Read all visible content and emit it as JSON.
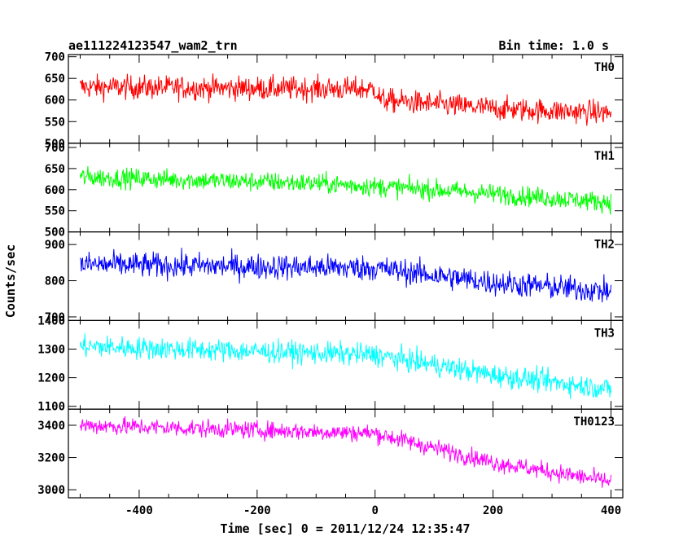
{
  "header": {
    "title": "ae111224123547_wam2_trn",
    "bin_time": "Bin time: 1.0 s"
  },
  "chart_data": {
    "type": "line",
    "title": "ae111224123547_wam2_trn",
    "xlabel": "Time [sec] 0 = 2011/12/24 12:35:47",
    "ylabel": "Counts/sec",
    "xlim": [
      -520,
      420
    ],
    "x_ticks": [
      -400,
      -200,
      0,
      200,
      400
    ],
    "x_range": [
      -500,
      400
    ],
    "panels": [
      {
        "name": "TH0",
        "color": "#ff0000",
        "ylim": [
          500,
          705
        ],
        "y_ticks": [
          500,
          550,
          600,
          650,
          700
        ],
        "trend": [
          [
            -500,
            630
          ],
          [
            0,
            625
          ],
          [
            10,
            600
          ],
          [
            200,
            580
          ],
          [
            400,
            570
          ]
        ],
        "spread": 35
      },
      {
        "name": "TH1",
        "color": "#00ff00",
        "ylim": [
          500,
          710
        ],
        "y_ticks": [
          500,
          550,
          600,
          650,
          700
        ],
        "trend": [
          [
            -500,
            630
          ],
          [
            -100,
            615
          ],
          [
            100,
            600
          ],
          [
            400,
            570
          ]
        ],
        "spread": 30
      },
      {
        "name": "TH2",
        "color": "#0000ff",
        "ylim": [
          690,
          935
        ],
        "y_ticks": [
          700,
          800,
          900
        ],
        "trend": [
          [
            -500,
            845
          ],
          [
            0,
            835
          ],
          [
            200,
            795
          ],
          [
            400,
            770
          ]
        ],
        "spread": 45
      },
      {
        "name": "TH3",
        "color": "#00ffff",
        "ylim": [
          1090,
          1400
        ],
        "y_ticks": [
          1100,
          1200,
          1300,
          1400
        ],
        "trend": [
          [
            -500,
            1310
          ],
          [
            0,
            1280
          ],
          [
            200,
            1210
          ],
          [
            400,
            1160
          ]
        ],
        "spread": 50
      },
      {
        "name": "TH0123",
        "color": "#ff00ff",
        "ylim": [
          2950,
          3500
        ],
        "y_ticks": [
          3000,
          3200,
          3400
        ],
        "trend": [
          [
            -500,
            3400
          ],
          [
            0,
            3350
          ],
          [
            200,
            3170
          ],
          [
            400,
            3050
          ]
        ],
        "spread": 70
      }
    ]
  }
}
